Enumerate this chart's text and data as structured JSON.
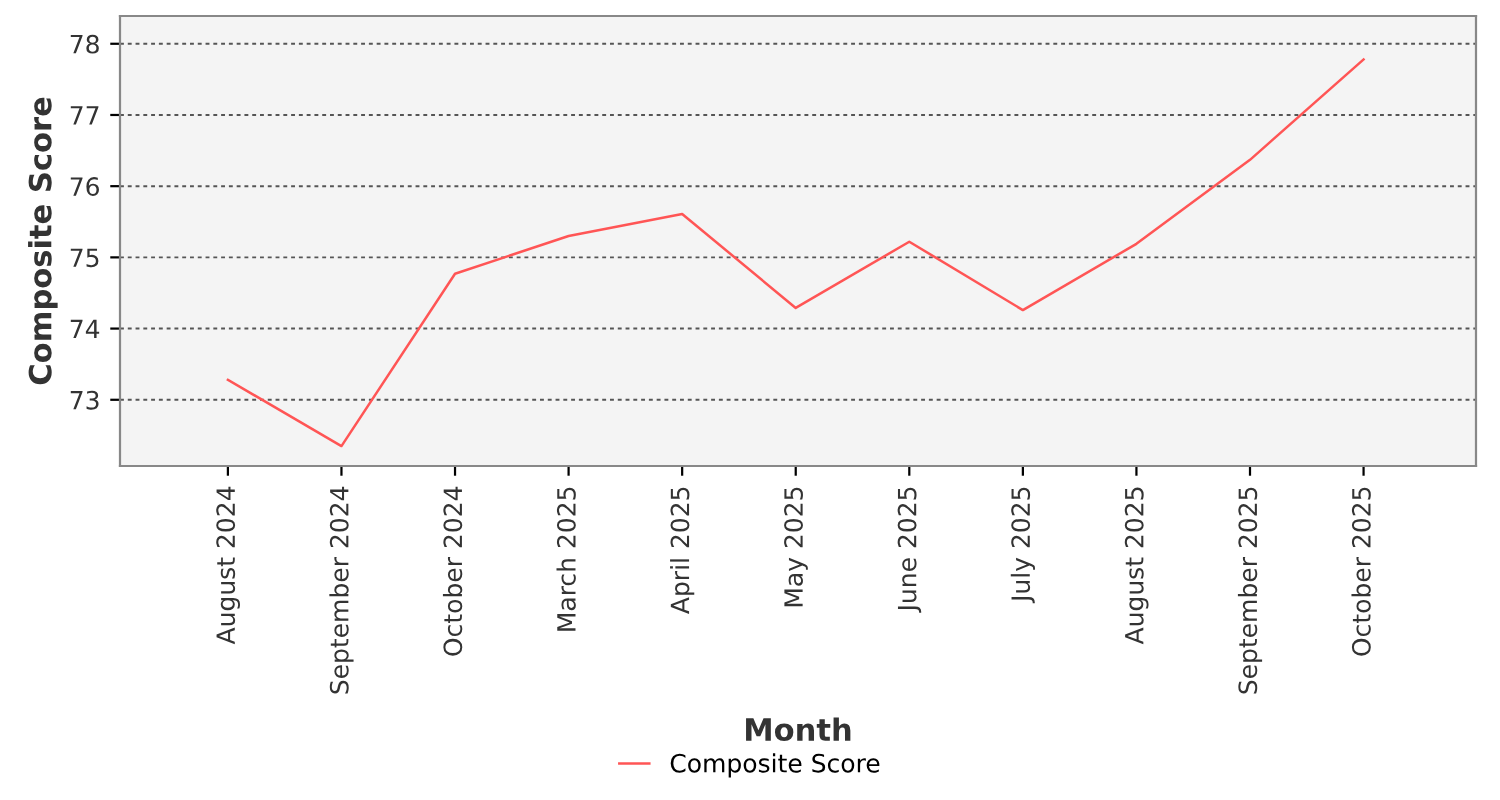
{
  "chart_data": {
    "type": "line",
    "xlabel": "Month",
    "ylabel": "Composite Score",
    "categories": [
      "August 2024",
      "September 2024",
      "October 2024",
      "March 2025",
      "April 2025",
      "May 2025",
      "June 2025",
      "July 2025",
      "August 2025",
      "September 2025",
      "October 2025"
    ],
    "series": [
      {
        "name": "Composite Score",
        "color": "#ff5555",
        "values": [
          73.28,
          72.35,
          74.77,
          75.3,
          75.61,
          74.29,
          75.22,
          74.26,
          75.19,
          76.37,
          77.78
        ]
      }
    ],
    "ylim": [
      72.07,
      78.39
    ],
    "yticks": [
      73,
      74,
      75,
      76,
      77,
      78
    ],
    "grid": "y",
    "legend": "bottom",
    "marker": "none",
    "line_style": "solid"
  }
}
